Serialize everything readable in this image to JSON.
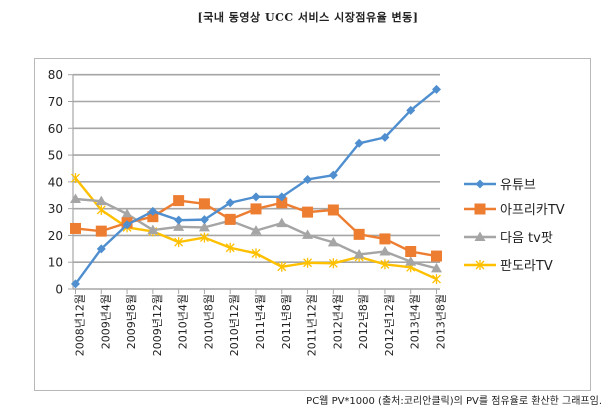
{
  "title": "[국내 동영상 UCC 서비스 시장점유율 변동]",
  "footer": "PC웹 PV*1000 (출처:코리안클릭)의 PV를 점유율로 환산한 그래프임.",
  "chart_data": {
    "type": "line",
    "title": "[국내 동영상 UCC 서비스 시장점유율 변동]",
    "xlabel": "",
    "ylabel": "",
    "ylim": [
      0,
      80
    ],
    "yticks": [
      0,
      10,
      20,
      30,
      40,
      50,
      60,
      70,
      80
    ],
    "grid": true,
    "legend_position": "right",
    "categories": [
      "2008년12월",
      "2009년4월",
      "2009년8월",
      "2009년12월",
      "2010년4월",
      "2010년8월",
      "2010년12월",
      "2011년4월",
      "2011년8월",
      "2011년12월",
      "2012년4월",
      "2012년8월",
      "2012년12월",
      "2013년4월",
      "2013년8월"
    ],
    "series": [
      {
        "name": "유튜브",
        "color": "#4f8fd0",
        "marker": "diamond",
        "values": [
          1.9,
          15.0,
          24.0,
          29.0,
          25.7,
          25.9,
          32.2,
          34.4,
          34.4,
          40.9,
          42.5,
          54.4,
          56.6,
          66.7,
          74.5
        ]
      },
      {
        "name": "아프리카TV",
        "color": "#ed7d31",
        "marker": "square",
        "values": [
          22.6,
          21.6,
          24.7,
          27.0,
          33.0,
          31.8,
          26.0,
          29.9,
          32.2,
          28.7,
          29.5,
          20.4,
          18.7,
          14.0,
          12.3
        ]
      },
      {
        "name": "다음 tv팟",
        "color": "#a5a5a5",
        "marker": "triangle",
        "values": [
          33.6,
          32.8,
          28.0,
          22.0,
          23.2,
          23.0,
          25.5,
          21.8,
          24.6,
          20.2,
          17.4,
          12.9,
          14.0,
          10.2,
          7.7
        ]
      },
      {
        "name": "판도라TV",
        "color": "#ffc000",
        "marker": "star",
        "values": [
          41.4,
          29.5,
          23.0,
          21.5,
          17.5,
          19.2,
          15.4,
          13.3,
          8.3,
          9.8,
          9.6,
          12.0,
          9.2,
          8.1,
          3.7
        ]
      }
    ]
  }
}
